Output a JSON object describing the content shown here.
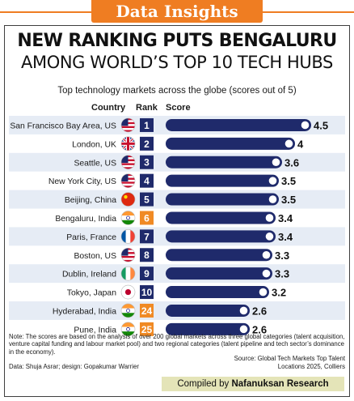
{
  "banner": {
    "text": "Data Insights"
  },
  "headline": {
    "line1": "NEW RANKING PUTS BENGALURU",
    "line2": "AMONG WORLD’S TOP 10 TECH HUBS"
  },
  "colors": {
    "banner": "#ef7d22",
    "bar": "#1f2a6b",
    "rank_badge": "#1f2a6b",
    "rank_badge_india": "#f08a24",
    "row_stripe": "#e6ecf5",
    "compiled_bg": "#e4e4b8"
  },
  "chart_data": {
    "type": "bar",
    "orientation": "horizontal",
    "title": "Top technology markets across the globe (scores out of 5)",
    "column_headers": {
      "country": "Country",
      "rank": "Rank",
      "score": "Score"
    },
    "xlim": [
      0,
      4.5
    ],
    "categories": [
      "San Francisco Bay Area, US",
      "London, UK",
      "Seattle, US",
      "New York City, US",
      "Beijing, China",
      "Bengaluru, India",
      "Paris, France",
      "Boston, US",
      "Dublin, Ireland",
      "Tokyo, Japan",
      "Hyderabad, India",
      "Pune, India"
    ],
    "ranks": [
      "1",
      "2",
      "3",
      "4",
      "5",
      "6",
      "7",
      "8",
      "9",
      "10",
      "24",
      "25"
    ],
    "flags": [
      "us-flag-icon",
      "uk-flag-icon",
      "us-flag-icon",
      "us-flag-icon",
      "china-flag-icon",
      "india-flag-icon",
      "france-flag-icon",
      "us-flag-icon",
      "ireland-flag-icon",
      "japan-flag-icon",
      "india-flag-icon",
      "india-flag-icon"
    ],
    "values": [
      4.5,
      4,
      3.6,
      3.5,
      3.5,
      3.4,
      3.4,
      3.3,
      3.3,
      3.2,
      2.6,
      2.6
    ],
    "labels": [
      "4.5",
      "4",
      "3.6",
      "3.5",
      "3.5",
      "3.4",
      "3.4",
      "3.3",
      "3.3",
      "3.2",
      "2.6",
      "2.6"
    ]
  },
  "footer": {
    "note": "Note: The scores are based on the analysis of over 200 global markets across three global categories (talent acquisition, venture capital funding and labour market pool) and two regional categories (talent pipeline and tech sector’s dominance in the economy).",
    "source_line1": "Source: Global Tech Markets Top Talent",
    "source_line2": "Locations 2025, Colliers",
    "credit": "Data: Shuja Asrar; design: Gopakumar Warrier",
    "compiled_prefix": "Compiled by ",
    "compiled_name": "Nafanuksan Research"
  }
}
